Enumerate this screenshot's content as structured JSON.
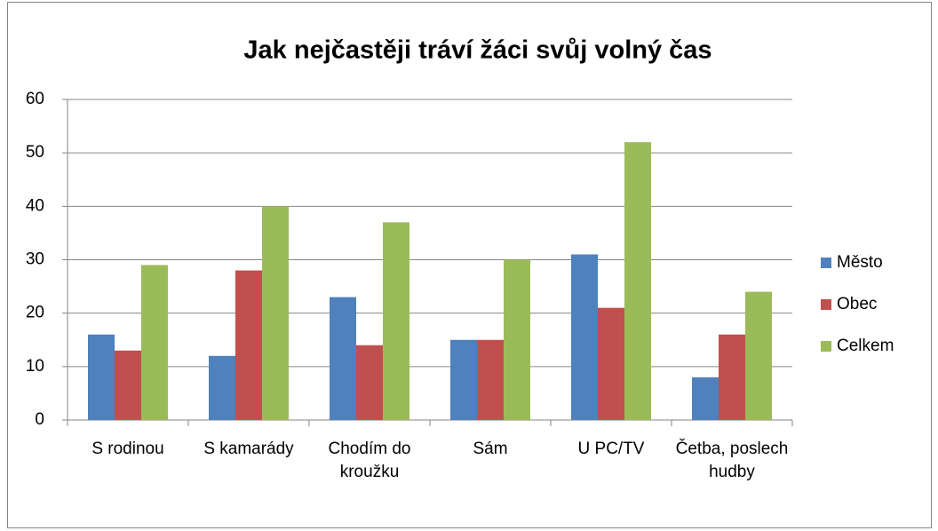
{
  "chart_data": {
    "type": "bar",
    "title": "Jak nejčastěji tráví žáci svůj volný čas",
    "categories": [
      "S rodinou",
      "S kamarády",
      "Chodím do kroužku",
      "Sám",
      "U PC/TV",
      "Četba, poslech hudby"
    ],
    "series": [
      {
        "name": "Město",
        "color": "#4f81bd",
        "values": [
          16,
          12,
          23,
          15,
          31,
          8
        ]
      },
      {
        "name": "Obec",
        "color": "#c0504d",
        "values": [
          13,
          28,
          14,
          15,
          21,
          16
        ]
      },
      {
        "name": "Celkem",
        "color": "#9bbb59",
        "values": [
          29,
          40,
          37,
          30,
          52,
          24
        ]
      }
    ],
    "ylim": [
      0,
      60
    ],
    "yticks": [
      0,
      10,
      20,
      30,
      40,
      50,
      60
    ],
    "grid": true,
    "legend": "right"
  }
}
